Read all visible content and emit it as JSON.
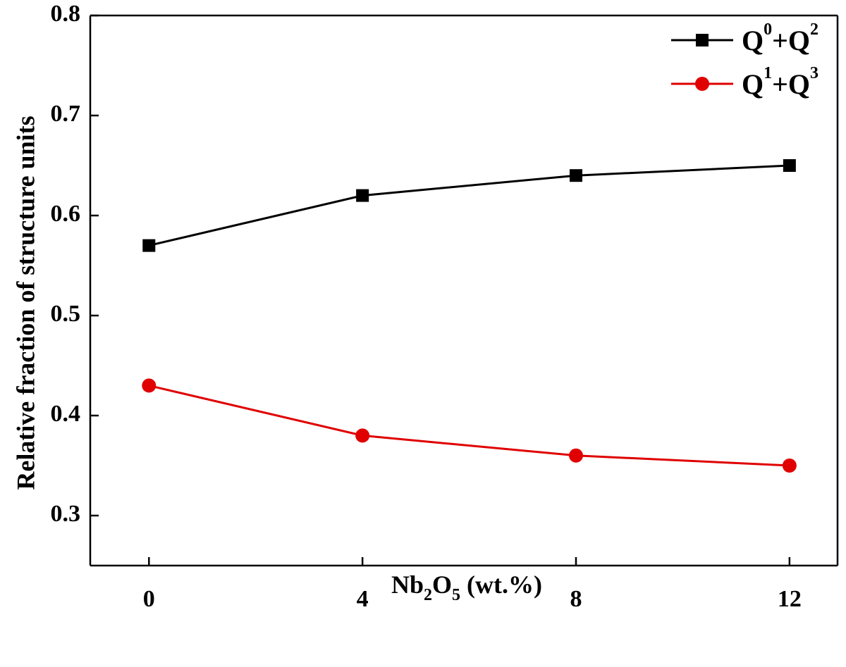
{
  "chart_data": {
    "type": "line",
    "title": "",
    "ylabel": "Relative fraction of structure units",
    "xlabel": {
      "prefix": "Nb",
      "sub1": "2",
      "mid": "O",
      "sub2": "5",
      "suffix": " (wt.%)"
    },
    "x": [
      0,
      4,
      8,
      12
    ],
    "xlim": [
      -1.1,
      12.9
    ],
    "ylim": [
      0.25,
      0.8
    ],
    "xticks": [
      0,
      4,
      8,
      12
    ],
    "xtick_labels": [
      "0",
      "4",
      "8",
      "12"
    ],
    "yticks": [
      0.3,
      0.4,
      0.5,
      0.6,
      0.7,
      0.8
    ],
    "ytick_labels": [
      "0.3",
      "0.4",
      "0.5",
      "0.6",
      "0.7",
      "0.8"
    ],
    "grid": false,
    "legend_position": "top-right",
    "series": [
      {
        "name": "Q0+Q2",
        "legend": {
          "a": "Q",
          "a_sup": "0",
          "plus": "+",
          "b": "Q",
          "b_sup": "2"
        },
        "values": [
          0.57,
          0.62,
          0.64,
          0.65
        ],
        "color": "#000000",
        "marker": "square"
      },
      {
        "name": "Q1+Q3",
        "legend": {
          "a": "Q",
          "a_sup": "1",
          "plus": "+",
          "b": "Q",
          "b_sup": "3"
        },
        "values": [
          0.43,
          0.38,
          0.36,
          0.35
        ],
        "color": "#e00000",
        "marker": "circle"
      }
    ]
  }
}
